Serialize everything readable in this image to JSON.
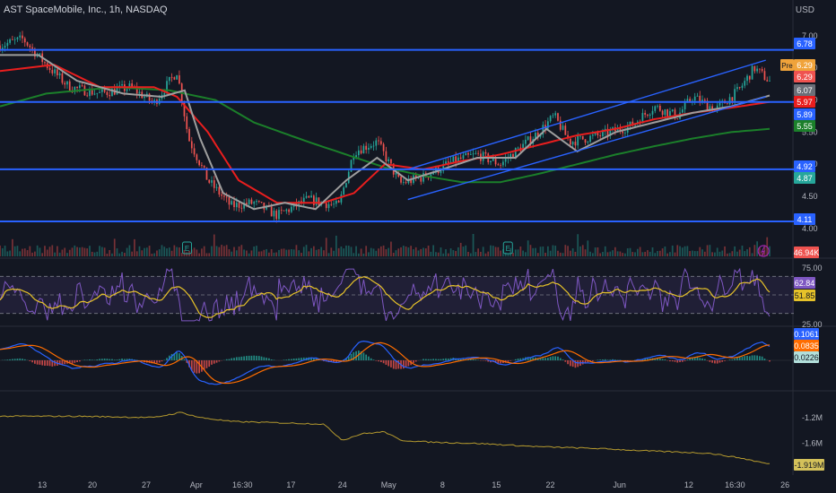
{
  "header": {
    "title": "AST SpaceMobile, Inc., 1h, NASDAQ",
    "currency": "USD"
  },
  "colors": {
    "background": "#131722",
    "up": "#26a69a",
    "down": "#ef5350",
    "hline": "#2962ff",
    "sma_red": "#e91e1e",
    "sma_green": "#1b7f2a",
    "sma_gray": "#9e9e9e",
    "rsi": "#7e57c2",
    "rsi_ma": "#e6c229",
    "macd": "#2962ff",
    "signal": "#ff6d00",
    "obv": "#b59a2e"
  },
  "chart_data": [
    {
      "type": "candlestick",
      "pane": "price",
      "title": "AST SpaceMobile, Inc., 1h, NASDAQ",
      "x_tick_labels": [
        "13",
        "20",
        "27",
        "Apr",
        "16:30",
        "17",
        "24",
        "May",
        "8",
        "15",
        "22",
        "Jun",
        "12",
        "16:30",
        "26"
      ],
      "y_tick_labels": [
        "7.00",
        "6.50",
        "6.00",
        "5.50",
        "5.00",
        "4.50",
        "4.00"
      ],
      "ylim": [
        3.9,
        7.25
      ],
      "horizontal_levels": [
        6.78,
        5.97,
        4.92,
        4.11
      ],
      "price_labels": [
        {
          "text": "6.78",
          "color": "#2962ff"
        },
        {
          "text": "6.29",
          "color": "#f0a33a",
          "prefix": "Pre"
        },
        {
          "text": "6.29",
          "color": "#ef5350"
        },
        {
          "text": "6.07",
          "color": "#6b6f78"
        },
        {
          "text": "5.97",
          "color": "#e91e1e"
        },
        {
          "text": "5.89",
          "color": "#2962ff"
        },
        {
          "text": "5.55",
          "color": "#1b7f2a"
        },
        {
          "text": "4.92",
          "color": "#2962ff"
        },
        {
          "text": "4.87",
          "color": "#26a69a"
        },
        {
          "text": "4.11",
          "color": "#2962ff"
        }
      ],
      "channel": {
        "lower": [
          [
            0.0,
            4.45
          ],
          [
            1.0,
            6.05
          ]
        ],
        "upper": [
          [
            0.0,
            4.92
          ],
          [
            1.0,
            6.62
          ]
        ]
      },
      "close_anchors": [
        [
          0,
          6.85
        ],
        [
          0.03,
          6.95
        ],
        [
          0.06,
          6.55
        ],
        [
          0.09,
          6.2
        ],
        [
          0.13,
          6.1
        ],
        [
          0.17,
          6.2
        ],
        [
          0.2,
          5.95
        ],
        [
          0.23,
          6.45
        ],
        [
          0.245,
          5.4
        ],
        [
          0.27,
          4.75
        ],
        [
          0.3,
          4.35
        ],
        [
          0.33,
          4.4
        ],
        [
          0.36,
          4.2
        ],
        [
          0.4,
          4.45
        ],
        [
          0.44,
          4.35
        ],
        [
          0.46,
          5.2
        ],
        [
          0.49,
          5.35
        ],
        [
          0.52,
          4.7
        ],
        [
          0.55,
          4.8
        ],
        [
          0.59,
          5.05
        ],
        [
          0.62,
          5.15
        ],
        [
          0.65,
          5.0
        ],
        [
          0.7,
          5.5
        ],
        [
          0.72,
          5.75
        ],
        [
          0.74,
          5.35
        ],
        [
          0.78,
          5.45
        ],
        [
          0.82,
          5.6
        ],
        [
          0.85,
          5.9
        ],
        [
          0.88,
          5.75
        ],
        [
          0.9,
          6.05
        ],
        [
          0.93,
          5.85
        ],
        [
          0.96,
          6.15
        ],
        [
          0.98,
          6.5
        ],
        [
          1.0,
          6.29
        ]
      ],
      "sma_red_anchors": [
        [
          0.0,
          6.45
        ],
        [
          0.07,
          6.55
        ],
        [
          0.13,
          6.2
        ],
        [
          0.2,
          6.2
        ],
        [
          0.23,
          6.05
        ],
        [
          0.27,
          5.5
        ],
        [
          0.31,
          4.75
        ],
        [
          0.36,
          4.4
        ],
        [
          0.42,
          4.4
        ],
        [
          0.46,
          4.55
        ],
        [
          0.5,
          5.0
        ],
        [
          0.55,
          4.92
        ],
        [
          0.6,
          5.05
        ],
        [
          0.65,
          5.15
        ],
        [
          0.7,
          5.3
        ],
        [
          0.75,
          5.45
        ],
        [
          0.8,
          5.55
        ],
        [
          0.85,
          5.7
        ],
        [
          0.9,
          5.8
        ],
        [
          0.95,
          5.88
        ],
        [
          1.0,
          5.97
        ]
      ],
      "sma_green_anchors": [
        [
          0.0,
          5.9
        ],
        [
          0.06,
          6.1
        ],
        [
          0.15,
          6.2
        ],
        [
          0.22,
          6.15
        ],
        [
          0.28,
          6.0
        ],
        [
          0.33,
          5.65
        ],
        [
          0.4,
          5.35
        ],
        [
          0.45,
          5.15
        ],
        [
          0.5,
          4.95
        ],
        [
          0.55,
          4.82
        ],
        [
          0.6,
          4.72
        ],
        [
          0.65,
          4.72
        ],
        [
          0.7,
          4.85
        ],
        [
          0.75,
          5.0
        ],
        [
          0.8,
          5.15
        ],
        [
          0.85,
          5.28
        ],
        [
          0.9,
          5.4
        ],
        [
          0.95,
          5.5
        ],
        [
          1.0,
          5.55
        ]
      ],
      "sma_gray_anchors": [
        [
          0.0,
          6.7
        ],
        [
          0.05,
          6.7
        ],
        [
          0.1,
          6.3
        ],
        [
          0.16,
          6.1
        ],
        [
          0.21,
          6.05
        ],
        [
          0.24,
          6.15
        ],
        [
          0.26,
          5.4
        ],
        [
          0.29,
          4.55
        ],
        [
          0.33,
          4.3
        ],
        [
          0.37,
          4.4
        ],
        [
          0.41,
          4.3
        ],
        [
          0.45,
          4.75
        ],
        [
          0.49,
          5.1
        ],
        [
          0.53,
          4.75
        ],
        [
          0.57,
          4.9
        ],
        [
          0.62,
          5.1
        ],
        [
          0.67,
          5.1
        ],
        [
          0.71,
          5.55
        ],
        [
          0.75,
          5.2
        ],
        [
          0.8,
          5.5
        ],
        [
          0.85,
          5.65
        ],
        [
          0.9,
          5.8
        ],
        [
          0.95,
          5.9
        ],
        [
          1.0,
          6.07
        ]
      ],
      "volume_label": "46.94K",
      "earnings_markers": [
        "E",
        "E"
      ]
    },
    {
      "type": "line",
      "pane": "rsi",
      "y_tick_labels": [
        "75.00",
        "25.00"
      ],
      "ylim": [
        20,
        80
      ],
      "band": [
        30,
        70
      ],
      "value_labels": [
        {
          "text": "62.84",
          "color": "#7e57c2"
        },
        {
          "text": "51.85",
          "color": "#e6c229"
        }
      ]
    },
    {
      "type": "bar",
      "pane": "macd",
      "value_labels": [
        {
          "text": "0.1061",
          "color": "#2962ff"
        },
        {
          "text": "0.0835",
          "color": "#ff6d00"
        },
        {
          "text": "0.0226",
          "color": "#b2dfdb"
        }
      ]
    },
    {
      "type": "line",
      "pane": "obv",
      "y_tick_labels": [
        "-1.2M",
        "-1.6M"
      ],
      "ylim": [
        -1.95,
        -1.05
      ],
      "value_label": "-1.919M",
      "obv_anchors": [
        [
          0.0,
          -1.18
        ],
        [
          0.1,
          -1.18
        ],
        [
          0.2,
          -1.2
        ],
        [
          0.235,
          -1.12
        ],
        [
          0.26,
          -1.2
        ],
        [
          0.3,
          -1.26
        ],
        [
          0.36,
          -1.28
        ],
        [
          0.42,
          -1.3
        ],
        [
          0.445,
          -1.55
        ],
        [
          0.47,
          -1.45
        ],
        [
          0.5,
          -1.42
        ],
        [
          0.52,
          -1.55
        ],
        [
          0.56,
          -1.58
        ],
        [
          0.62,
          -1.6
        ],
        [
          0.7,
          -1.65
        ],
        [
          0.78,
          -1.68
        ],
        [
          0.85,
          -1.72
        ],
        [
          0.92,
          -1.75
        ],
        [
          0.96,
          -1.82
        ],
        [
          1.0,
          -1.92
        ]
      ]
    }
  ]
}
